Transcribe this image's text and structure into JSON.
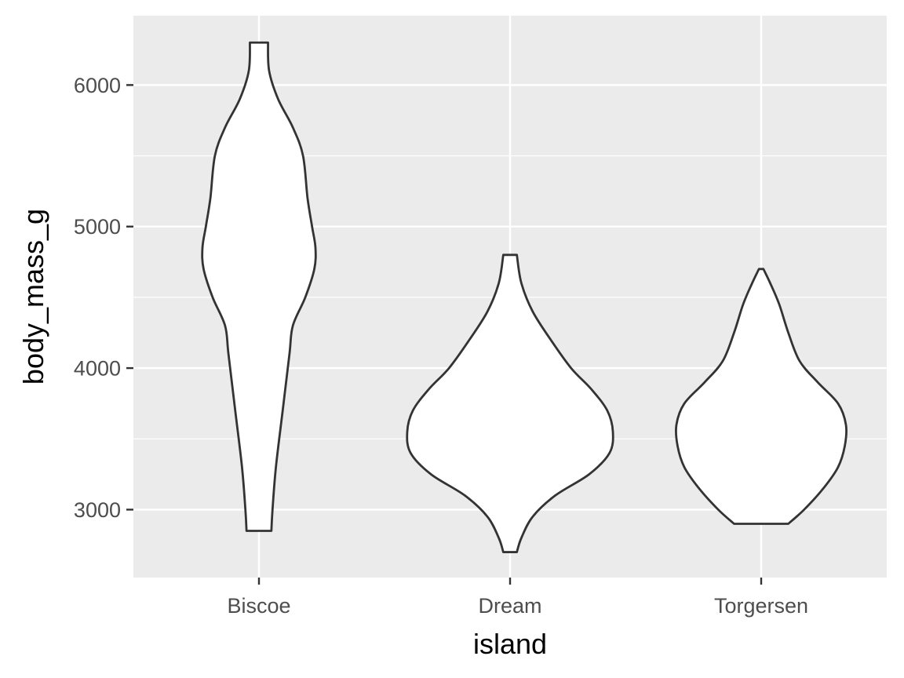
{
  "chart_data": {
    "type": "violin",
    "title": "",
    "xlabel": "island",
    "ylabel": "body_mass_g",
    "ylim": [
      2520,
      6490
    ],
    "yticks": [
      3000,
      4000,
      5000,
      6000
    ],
    "grid": true,
    "categories": [
      "Biscoe",
      "Dream",
      "Torgersen"
    ],
    "colors": {
      "panel": "#ebebeb",
      "grid": "#ffffff",
      "outline": "#333333",
      "fill": "#ffffff"
    },
    "violins": [
      {
        "category": "Biscoe",
        "min": 2850,
        "max": 6300,
        "profile": [
          [
            2850,
            0.055
          ],
          [
            3000,
            0.06
          ],
          [
            3300,
            0.075
          ],
          [
            3700,
            0.105
          ],
          [
            4100,
            0.135
          ],
          [
            4300,
            0.15
          ],
          [
            4500,
            0.205
          ],
          [
            4700,
            0.245
          ],
          [
            4850,
            0.25
          ],
          [
            5000,
            0.235
          ],
          [
            5200,
            0.215
          ],
          [
            5500,
            0.195
          ],
          [
            5700,
            0.15
          ],
          [
            5900,
            0.085
          ],
          [
            6100,
            0.045
          ],
          [
            6300,
            0.04
          ]
        ]
      },
      {
        "category": "Dream",
        "min": 2700,
        "max": 4800,
        "profile": [
          [
            2700,
            0.03
          ],
          [
            2800,
            0.05
          ],
          [
            2950,
            0.1
          ],
          [
            3100,
            0.2
          ],
          [
            3250,
            0.35
          ],
          [
            3400,
            0.44
          ],
          [
            3550,
            0.455
          ],
          [
            3700,
            0.43
          ],
          [
            3850,
            0.36
          ],
          [
            4000,
            0.27
          ],
          [
            4200,
            0.18
          ],
          [
            4400,
            0.1
          ],
          [
            4600,
            0.05
          ],
          [
            4800,
            0.03
          ]
        ]
      },
      {
        "category": "Torgersen",
        "min": 2900,
        "max": 4700,
        "profile": [
          [
            2900,
            0.12
          ],
          [
            3000,
            0.19
          ],
          [
            3150,
            0.275
          ],
          [
            3300,
            0.34
          ],
          [
            3450,
            0.37
          ],
          [
            3600,
            0.375
          ],
          [
            3750,
            0.34
          ],
          [
            3900,
            0.25
          ],
          [
            4050,
            0.17
          ],
          [
            4250,
            0.12
          ],
          [
            4450,
            0.08
          ],
          [
            4600,
            0.04
          ],
          [
            4700,
            0.01
          ]
        ]
      }
    ]
  }
}
